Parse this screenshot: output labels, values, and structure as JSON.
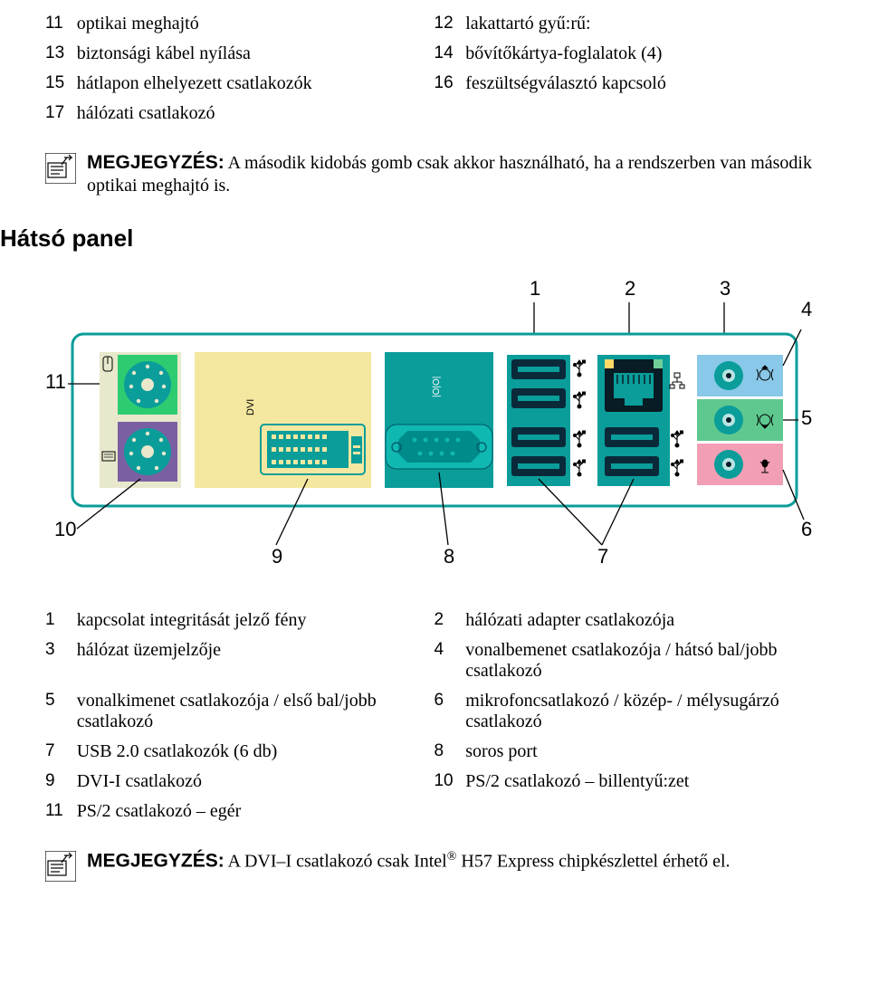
{
  "table1": {
    "rows": [
      {
        "n1": "11",
        "d1": "optikai meghajtó",
        "n2": "12",
        "d2": "lakattartó gyű:rű:"
      },
      {
        "n1": "13",
        "d1": "biztonsági kábel nyílása",
        "n2": "14",
        "d2": "bővítőkártya-foglalatok (4)"
      },
      {
        "n1": "15",
        "d1": "hátlapon elhelyezett csatlakozók",
        "n2": "16",
        "d2": "feszültségválasztó kapcsoló"
      },
      {
        "n1": "17",
        "d1": "hálózati csatlakozó",
        "n2": "",
        "d2": ""
      }
    ]
  },
  "note1": {
    "label": "MEGJEGYZÉS:",
    "text": " A második kidobás gomb csak akkor használható, ha a rendszerben van második optikai meghajtó is."
  },
  "section_title": "Hátsó panel",
  "diagram": {
    "callouts": {
      "c1": "1",
      "c2": "2",
      "c3": "3",
      "c4": "4",
      "c5": "5",
      "c6": "6",
      "c7": "7",
      "c8": "8",
      "c9": "9",
      "c10": "10",
      "c11": "11"
    },
    "colors": {
      "panel_border": "#0a9d9a",
      "panel_fill": "#0a9d9a",
      "bg_light": "#e8e8cc",
      "ps2_green": "#2ecc71",
      "ps2_purple": "#7b5fa3",
      "yellow_block": "#f4e7a0",
      "vga_outer": "#008b8b",
      "vga_inner": "#0fb8b0",
      "usb_block": "#0a2a3a",
      "usb_slot": "#0a9d9a",
      "rj45": "#071c24",
      "audio_blue": "#89c8e8",
      "audio_green": "#5ec88f",
      "audio_pink": "#f29fb5",
      "jack_center": "#b8e4e2",
      "callout_line": "#000000"
    }
  },
  "table2": {
    "rows": [
      {
        "n1": "1",
        "d1": "kapcsolat integritását jelző fény",
        "n2": "2",
        "d2": "hálózati adapter csatlakozója"
      },
      {
        "n1": "3",
        "d1": "hálózat üzemjelzője",
        "n2": "4",
        "d2": "vonalbemenet csatlakozója / hátsó bal/jobb csatlakozó"
      },
      {
        "n1": "5",
        "d1": "vonalkimenet csatlakozója / első bal/jobb csatlakozó",
        "n2": "6",
        "d2": "mikrofoncsatlakozó / közép- / mélysugárzó csatlakozó"
      },
      {
        "n1": "7",
        "d1": "USB 2.0 csatlakozók (6 db)",
        "n2": "8",
        "d2": "soros port"
      },
      {
        "n1": "9",
        "d1": "DVI-I csatlakozó",
        "n2": "10",
        "d2": "PS/2 csatlakozó – billentyű:zet"
      },
      {
        "n1": "11",
        "d1": "PS/2 csatlakozó – egér",
        "n2": "",
        "d2": ""
      }
    ]
  },
  "note2": {
    "label": "MEGJEGYZÉS:",
    "text_before": " A DVI–I csatlakozó csak Intel",
    "sup": "®",
    "text_after": " H57 Express chipkészlettel érhető el."
  }
}
